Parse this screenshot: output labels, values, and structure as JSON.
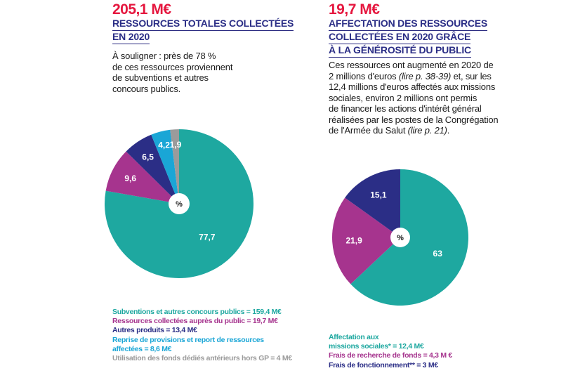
{
  "colors": {
    "red": "#e5173f",
    "navy": "#2b2e86",
    "teal": "#1ea8a0",
    "magenta": "#a6348e",
    "cyan": "#1aa6d6",
    "grey": "#9b9b9b"
  },
  "left": {
    "amount": "205,1 M€",
    "heading_line1": "RESSOURCES TOTALES COLLECTÉES",
    "heading_line2": "EN 2020",
    "text_line1": "À souligner : près de 78 %",
    "text_line2": "de ces ressources proviennent",
    "text_line3": "de subventions et autres",
    "text_line4": "concours publics.",
    "legend": [
      "Subventions et autres concours publics = 159,4 M€",
      "Ressources collectées auprès du public = 19,7 M€",
      "Autres produits = 13,4 M€",
      "Reprise de provisions et report de ressources",
      "affectées = 8,6 M€",
      "Utilisation des fonds dédiés antérieurs hors GP = 4 M€"
    ]
  },
  "right": {
    "amount": "19,7 M€",
    "heading_line1": "AFFECTATION DES RESSOURCES",
    "heading_line2": "COLLECTÉES EN 2020 GRÂCE",
    "heading_line3": "À LA GÉNÉROSITÉ DU PUBLIC",
    "text_line1": "Ces ressources ont augmenté en 2020 de",
    "text_line2a": "2 millions d'euros ",
    "text_line2b": "(lire p. 38-39)",
    "text_line2c": " et, sur les",
    "text_line3": "12,4 millions d'euros affectés aux missions",
    "text_line4": "sociales, environ 2 millions ont permis",
    "text_line5": "de financer les actions d'intérêt général",
    "text_line6": "réalisées par les postes de la Congrégation",
    "text_line7a": "de l'Armée du Salut ",
    "text_line7b": "(lire p. 21)",
    "text_line7c": ".",
    "legend": [
      "Affectation aux",
      "missions sociales* = 12,4 M€",
      "Frais de recherche de fonds = 4,3 M €",
      "Frais de fonctionnement** = 3 M€"
    ]
  },
  "chart_data": [
    {
      "type": "pie",
      "title": "205,1 M€ RESSOURCES TOTALES COLLECTÉES EN 2020",
      "unit": "%",
      "center_label": "%",
      "labels": [
        "Subventions et autres concours publics",
        "Ressources collectées auprès du public",
        "Autres produits",
        "Reprise de provisions et report de ressources affectées",
        "Utilisation des fonds dédiés antérieurs hors GP"
      ],
      "values": [
        77.7,
        9.6,
        6.5,
        4.2,
        1.9
      ],
      "value_labels": [
        "77,7",
        "9,6",
        "6,5",
        "4,2",
        "1,9"
      ],
      "colors": [
        "#1ea8a0",
        "#a6348e",
        "#2b2e86",
        "#1aa6d6",
        "#9b9b9b"
      ],
      "label_colors": [
        "#ffffff",
        "#ffffff",
        "#ffffff",
        "#ffffff",
        "#ffffff"
      ]
    },
    {
      "type": "pie",
      "title": "19,7 M€ AFFECTATION DES RESSOURCES COLLECTÉES EN 2020 GRÂCE À LA GÉNÉROSITÉ DU PUBLIC",
      "unit": "%",
      "center_label": "%",
      "labels": [
        "Affectation aux missions sociales",
        "Frais de recherche de fonds",
        "Frais de fonctionnement"
      ],
      "values": [
        63,
        21.9,
        15.1
      ],
      "value_labels": [
        "63",
        "21,9",
        "15,1"
      ],
      "colors": [
        "#1ea8a0",
        "#a6348e",
        "#2b2e86"
      ],
      "label_colors": [
        "#ffffff",
        "#ffffff",
        "#ffffff"
      ]
    }
  ]
}
